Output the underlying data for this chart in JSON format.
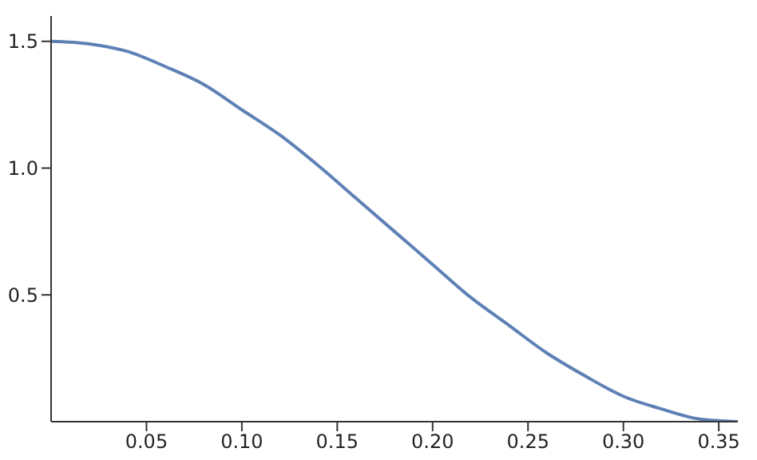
{
  "chart_data": {
    "type": "line",
    "x": [
      0,
      0.02,
      0.04,
      0.06,
      0.08,
      0.1,
      0.12,
      0.14,
      0.16,
      0.18,
      0.2,
      0.22,
      0.24,
      0.26,
      0.28,
      0.3,
      0.32,
      0.34,
      0.36
    ],
    "series": [
      {
        "color": "#5e81b5",
        "values": [
          1.5,
          1.49,
          1.46,
          1.4,
          1.33,
          1.23,
          1.13,
          1.01,
          0.88,
          0.75,
          0.62,
          0.49,
          0.38,
          0.27,
          0.18,
          0.1,
          0.05,
          0.01,
          0
        ]
      }
    ],
    "xlim": [
      0,
      0.36
    ],
    "xticks": [
      {
        "value": 0.05,
        "label": "0.05"
      },
      {
        "value": 0.1,
        "label": "0.10"
      },
      {
        "value": 0.15,
        "label": "0.15"
      },
      {
        "value": 0.2,
        "label": "0.20"
      },
      {
        "value": 0.25,
        "label": "0.25"
      },
      {
        "value": 0.3,
        "label": "0.30"
      },
      {
        "value": 0.35,
        "label": "0.35"
      }
    ],
    "ylim": [
      0,
      1.6
    ],
    "yticks": [
      {
        "value": 0.5,
        "label": "0.5"
      },
      {
        "value": 1,
        "label": "1.0"
      },
      {
        "value": 1.5,
        "label": "1.5"
      }
    ],
    "grid": false,
    "legend": false,
    "marker": "none",
    "line_style": "solid"
  }
}
